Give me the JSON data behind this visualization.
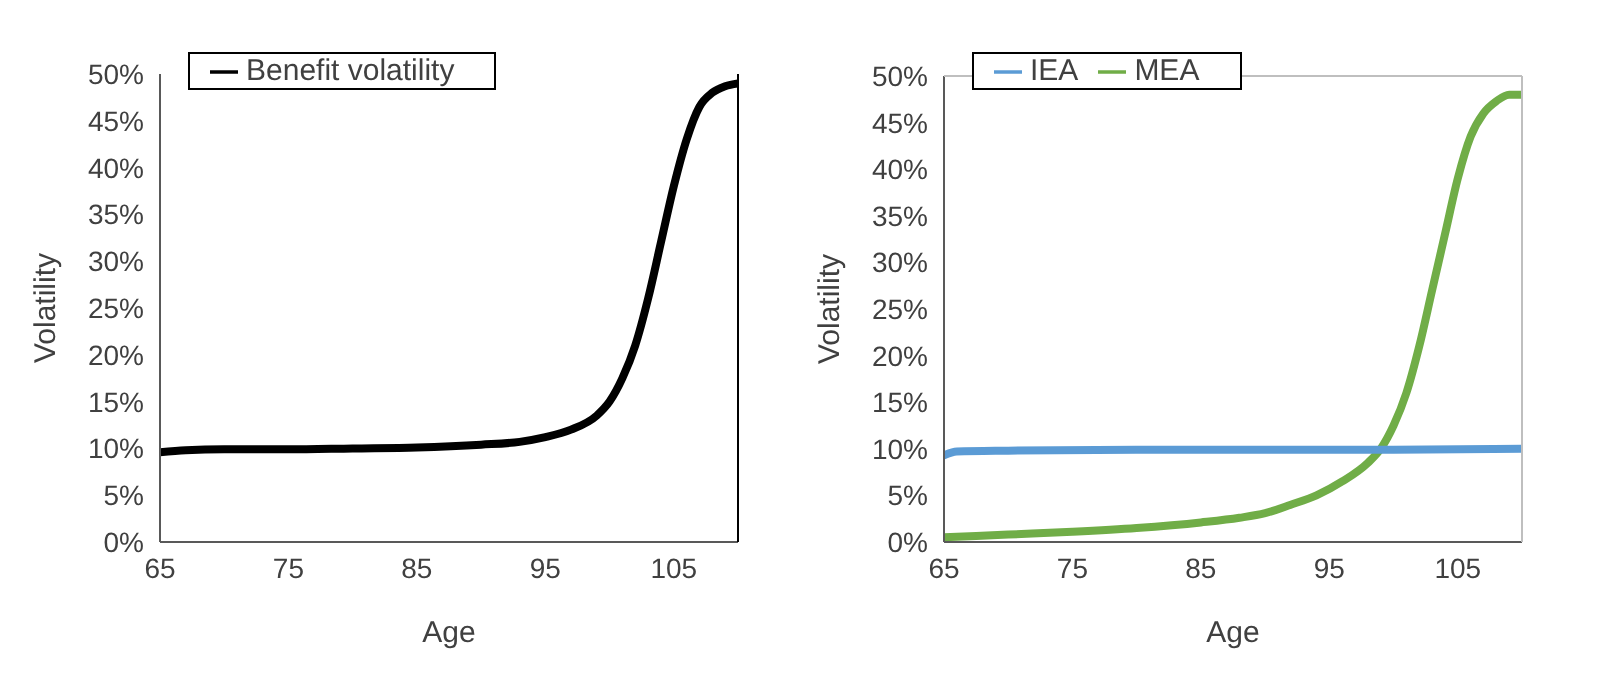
{
  "chart_data": [
    {
      "type": "line",
      "xlabel": "Age",
      "ylabel": "Volatility",
      "xlim": [
        65,
        110
      ],
      "xticks": [
        65,
        75,
        85,
        95,
        105
      ],
      "ylim": [
        0,
        50
      ],
      "yticks": [
        {
          "value": 0,
          "label": "0%"
        },
        {
          "value": 5,
          "label": "5%"
        },
        {
          "value": 10,
          "label": "10%"
        },
        {
          "value": 15,
          "label": "15%"
        },
        {
          "value": 20,
          "label": "20%"
        },
        {
          "value": 25,
          "label": "25%"
        },
        {
          "value": 30,
          "label": "30%"
        },
        {
          "value": 35,
          "label": "35%"
        },
        {
          "value": 40,
          "label": "40%"
        },
        {
          "value": 45,
          "label": "45%"
        },
        {
          "value": 50,
          "label": "50%"
        }
      ],
      "grid": false,
      "legend": "top left",
      "marker": "none",
      "line_style": "solid",
      "series": [
        {
          "name": "Benefit volatility",
          "color": "#000000",
          "x": [
            65,
            67,
            70,
            75,
            80,
            85,
            90,
            93,
            95,
            97,
            99,
            100,
            101,
            102,
            103,
            104,
            105,
            106,
            107,
            108,
            109,
            110
          ],
          "values": [
            9.6,
            9.8,
            9.9,
            9.9,
            10,
            10.1,
            10.4,
            10.7,
            11.2,
            12,
            13.5,
            15,
            17.5,
            21,
            26,
            32,
            38,
            43,
            46.5,
            48,
            48.7,
            49
          ]
        }
      ]
    },
    {
      "type": "line",
      "xlabel": "Age",
      "ylabel": "Volatility",
      "xlim": [
        65,
        110
      ],
      "xticks": [
        65,
        75,
        85,
        95,
        105
      ],
      "ylim": [
        0,
        50
      ],
      "yticks": [
        {
          "value": 0,
          "label": "0%"
        },
        {
          "value": 5,
          "label": "5%"
        },
        {
          "value": 10,
          "label": "10%"
        },
        {
          "value": 15,
          "label": "15%"
        },
        {
          "value": 20,
          "label": "20%"
        },
        {
          "value": 25,
          "label": "25%"
        },
        {
          "value": 30,
          "label": "30%"
        },
        {
          "value": 35,
          "label": "35%"
        },
        {
          "value": 40,
          "label": "40%"
        },
        {
          "value": 45,
          "label": "45%"
        },
        {
          "value": 50,
          "label": "50%"
        }
      ],
      "grid": false,
      "legend": "top left",
      "marker": "none",
      "line_style": "solid",
      "series": [
        {
          "name": "MEA",
          "color": "#70ad47",
          "x": [
            65,
            70,
            75,
            80,
            85,
            88,
            90,
            92,
            94,
            96,
            98,
            99,
            100,
            101,
            102,
            103,
            104,
            105,
            106,
            107,
            108,
            109,
            110
          ],
          "values": [
            0.5,
            0.8,
            1.1,
            1.5,
            2.1,
            2.6,
            3.1,
            4,
            5,
            6.5,
            8.5,
            10,
            12.5,
            16,
            21,
            27,
            33,
            39,
            43.5,
            46,
            47.3,
            48,
            48
          ]
        },
        {
          "name": "IEA",
          "color": "#5b9bd5",
          "x": [
            65,
            66,
            70,
            80,
            90,
            100,
            110
          ],
          "values": [
            9.3,
            9.7,
            9.8,
            9.9,
            9.9,
            9.9,
            10
          ]
        }
      ]
    }
  ]
}
